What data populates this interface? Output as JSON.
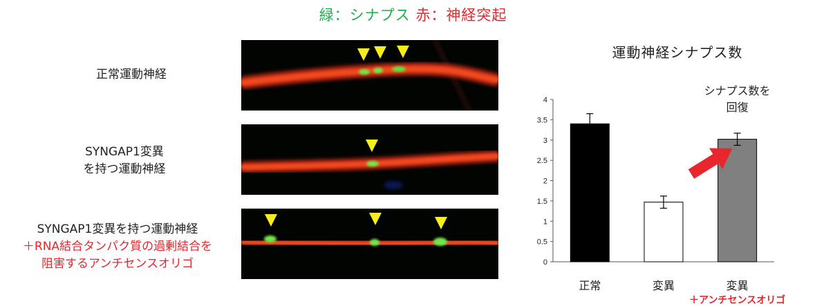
{
  "legend": {
    "green_label": "緑：シナプス",
    "red_label": "赤：神経突起",
    "colors": {
      "synapse": "#1fb04a",
      "neurite": "#e8262b",
      "arrowhead": "#f5ee1a"
    }
  },
  "rows": [
    {
      "label_lines": [
        "正常運動神経"
      ],
      "red_lines": [],
      "synapse_markers": 3
    },
    {
      "label_lines": [
        "SYNGAP1変異",
        "を持つ運動神経"
      ],
      "red_lines": [],
      "synapse_markers": 1
    },
    {
      "label_lines": [
        "SYNGAP1変異を持つ運動神経"
      ],
      "red_lines": [
        "＋RNA結合タンパク質の過剰結合を",
        "阻害するアンチセンスオリゴ"
      ],
      "synapse_markers": 3
    }
  ],
  "chart_data": {
    "type": "bar",
    "title": "運動神経シナプス数",
    "categories": [
      "正常",
      "変異",
      "変異"
    ],
    "category_sublabels": [
      "",
      "",
      "＋アンチセンスオリゴ"
    ],
    "values": [
      3.4,
      1.47,
      3.02
    ],
    "errors": [
      0.25,
      0.15,
      0.15
    ],
    "bar_colors": [
      "#000000",
      "#ffffff",
      "#808080"
    ],
    "ylim": [
      0,
      4
    ],
    "yticks": [
      "0",
      "0.5",
      "1",
      "1.5",
      "2",
      "2.5",
      "3",
      "3.5",
      "4"
    ],
    "annotation": [
      "シナプス数を",
      "回復"
    ],
    "arrow_color": "#e8262b",
    "grid": false
  }
}
